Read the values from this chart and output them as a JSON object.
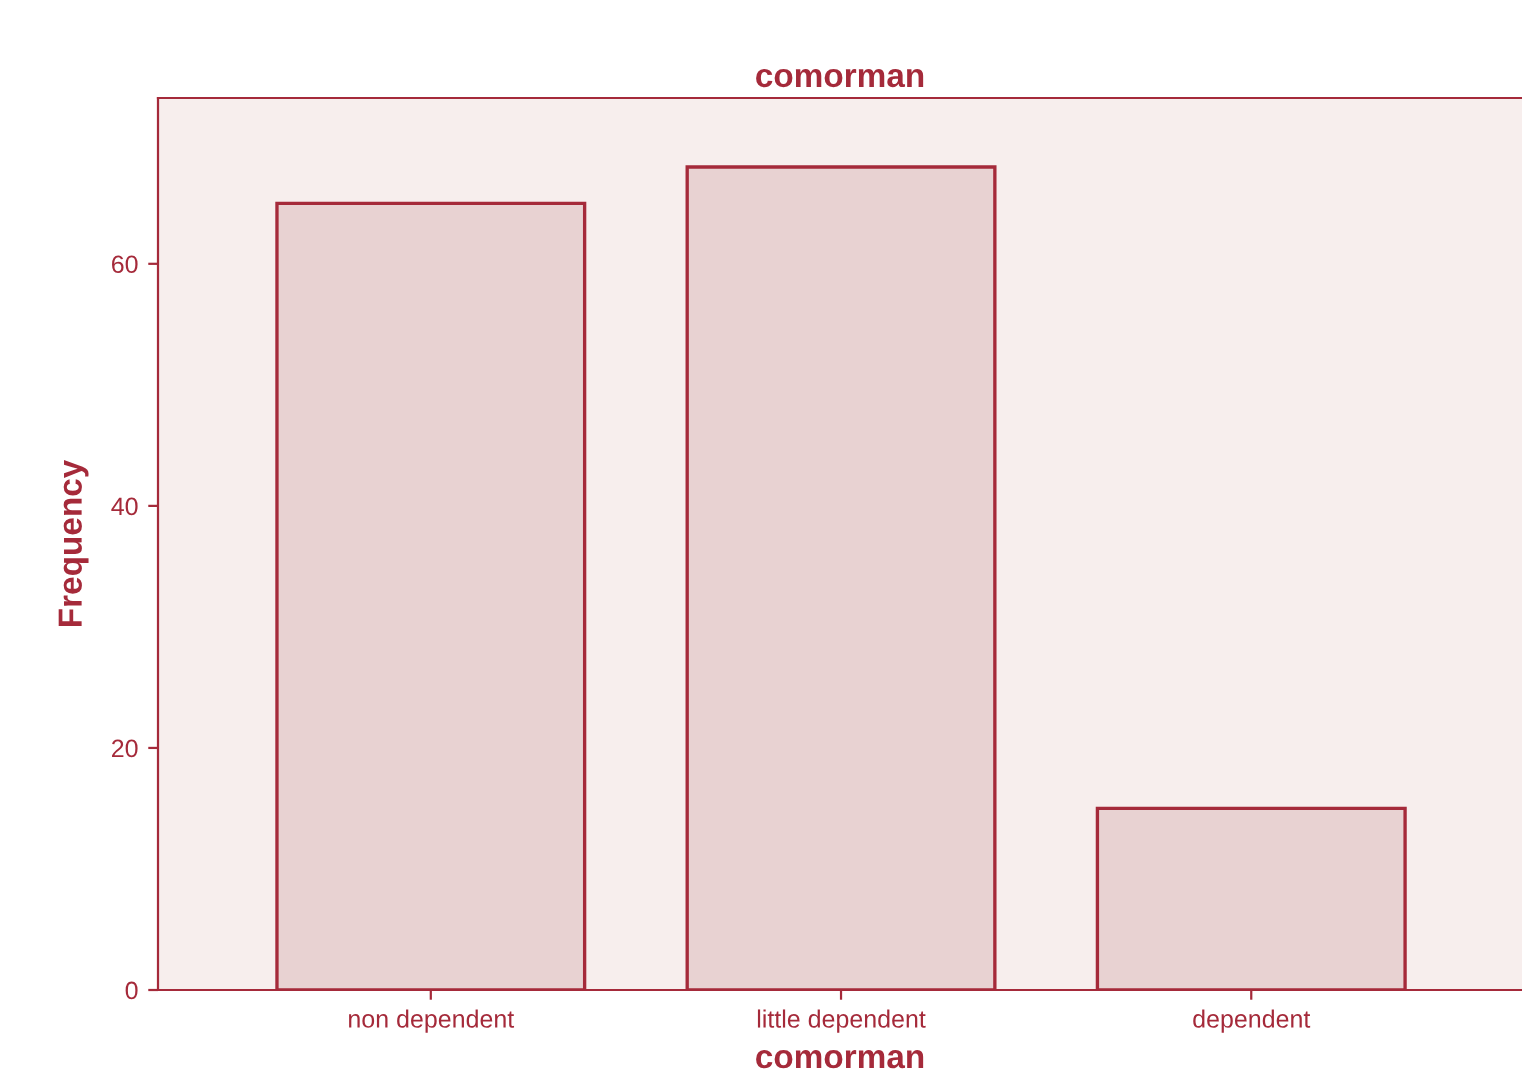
{
  "chart_data": {
    "type": "bar",
    "title": "comorman",
    "xlabel": "comorman",
    "ylabel": "Frequency",
    "categories": [
      "non dependent",
      "little dependent",
      "dependent"
    ],
    "values": [
      65,
      68,
      15
    ],
    "color": "#e8d2d2",
    "ylim": [
      0,
      73.7
    ],
    "yticks": [
      0,
      20,
      40,
      60
    ],
    "grid": false
  }
}
